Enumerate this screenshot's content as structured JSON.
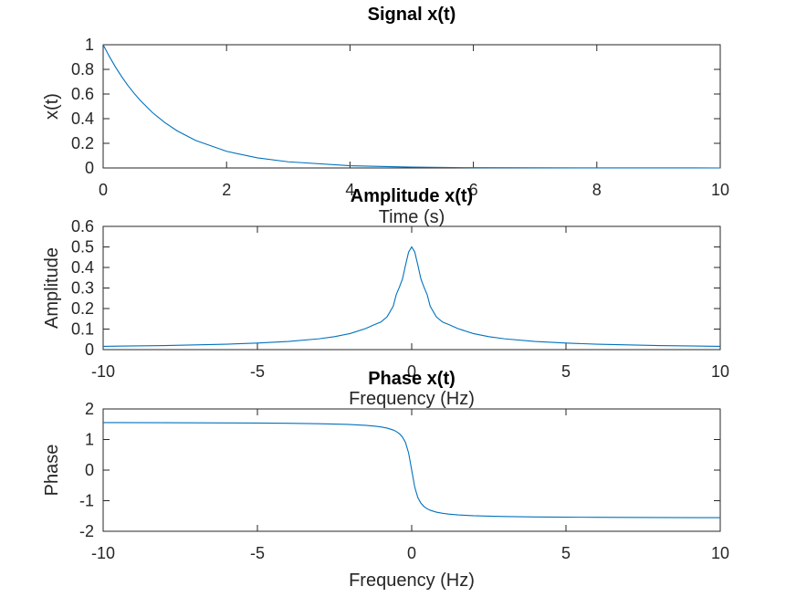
{
  "colors": {
    "line": "#0072bd",
    "axis": "#262626"
  },
  "chart_data": [
    {
      "type": "line",
      "title": "Signal x(t)",
      "xlabel": "Time (s)",
      "ylabel": "x(t)",
      "xlim": [
        0,
        10
      ],
      "ylim": [
        0,
        1
      ],
      "xticks": [
        "0",
        "2",
        "4",
        "6",
        "8",
        "10"
      ],
      "yticks": [
        "0",
        "0.2",
        "0.4",
        "0.6",
        "0.8",
        "1"
      ],
      "grid": false,
      "series": [
        {
          "x": [
            0,
            0.1,
            0.2,
            0.3,
            0.4,
            0.5,
            0.6,
            0.8,
            1.0,
            1.2,
            1.5,
            2.0,
            2.5,
            3.0,
            4.0,
            5.0,
            6.0,
            8.0,
            10.0
          ],
          "y": [
            1.0,
            0.905,
            0.819,
            0.741,
            0.67,
            0.607,
            0.549,
            0.449,
            0.368,
            0.301,
            0.223,
            0.135,
            0.082,
            0.05,
            0.018,
            0.007,
            0.002,
            0.0003,
            5e-05
          ]
        }
      ]
    },
    {
      "type": "line",
      "title": "Amplitude x(t)",
      "xlabel": "Frequency (Hz)",
      "ylabel": "Amplitude",
      "xlim": [
        -10,
        10
      ],
      "ylim": [
        0,
        0.6
      ],
      "xticks": [
        "-10",
        "-5",
        "0",
        "5",
        "10"
      ],
      "yticks": [
        "0",
        "0.1",
        "0.2",
        "0.3",
        "0.4",
        "0.5",
        "0.6"
      ],
      "grid": false,
      "series": [
        {
          "x": [
            -10,
            -8,
            -6,
            -5,
            -4,
            -3,
            -2.5,
            -2,
            -1.5,
            -1.2,
            -1,
            -0.8,
            -0.6,
            -0.5,
            -0.4,
            -0.3,
            -0.2,
            -0.1,
            0,
            0.1,
            0.2,
            0.3,
            0.4,
            0.5,
            0.6,
            0.8,
            1,
            1.2,
            1.5,
            2,
            2.5,
            3,
            4,
            5,
            6,
            8,
            10
          ],
          "y": [
            0.0159,
            0.0199,
            0.0265,
            0.0318,
            0.0397,
            0.0527,
            0.0629,
            0.078,
            0.1021,
            0.1221,
            0.1343,
            0.1593,
            0.2108,
            0.2682,
            0.3037,
            0.3434,
            0.411,
            0.4751,
            0.5,
            0.4751,
            0.411,
            0.3434,
            0.3037,
            0.2682,
            0.2108,
            0.1593,
            0.1343,
            0.1221,
            0.1021,
            0.078,
            0.0629,
            0.0527,
            0.0397,
            0.0318,
            0.0265,
            0.0199,
            0.0159
          ]
        }
      ]
    },
    {
      "type": "line",
      "title": "Phase x(t)",
      "xlabel": "Frequency (Hz)",
      "ylabel": "Phase",
      "xlim": [
        -10,
        10
      ],
      "ylim": [
        -2,
        2
      ],
      "xticks": [
        "-10",
        "-5",
        "0",
        "5",
        "10"
      ],
      "yticks": [
        "-2",
        "-1",
        "0",
        "1",
        "2"
      ],
      "grid": false,
      "series": [
        {
          "x": [
            -10,
            -8,
            -6,
            -5,
            -4,
            -3,
            -2.5,
            -2,
            -1.5,
            -1.2,
            -1,
            -0.8,
            -0.6,
            -0.5,
            -0.4,
            -0.3,
            -0.2,
            -0.1,
            0,
            0.1,
            0.2,
            0.3,
            0.4,
            0.5,
            0.6,
            0.8,
            1,
            1.2,
            1.5,
            2,
            2.5,
            3,
            4,
            5,
            6,
            8,
            10
          ],
          "y": [
            1.555,
            1.551,
            1.544,
            1.539,
            1.531,
            1.518,
            1.507,
            1.492,
            1.464,
            1.439,
            1.413,
            1.374,
            1.312,
            1.263,
            1.192,
            1.083,
            0.899,
            0.561,
            0,
            -0.561,
            -0.899,
            -1.083,
            -1.192,
            -1.263,
            -1.312,
            -1.374,
            -1.413,
            -1.439,
            -1.464,
            -1.492,
            -1.507,
            -1.518,
            -1.531,
            -1.539,
            -1.544,
            -1.551,
            -1.555
          ]
        }
      ]
    }
  ]
}
